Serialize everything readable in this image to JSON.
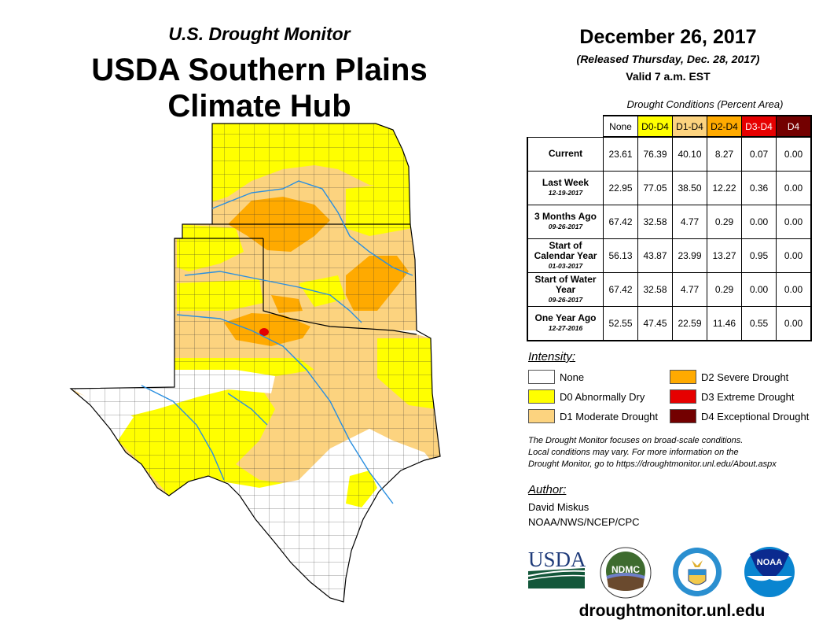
{
  "header": {
    "subtitle": "U.S. Drought Monitor",
    "title_line1": "USDA Southern Plains",
    "title_line2": "Climate Hub",
    "date": "December 26, 2017",
    "released": "(Released Thursday, Dec. 28, 2017)",
    "valid": "Valid 7 a.m. EST"
  },
  "table": {
    "caption": "Drought Conditions (Percent Area)",
    "columns": [
      {
        "label": "None",
        "color": "#ffffff",
        "text_color": "#000000"
      },
      {
        "label": "D0-D4",
        "color": "#ffff00",
        "text_color": "#000000"
      },
      {
        "label": "D1-D4",
        "color": "#fcd37f",
        "text_color": "#000000"
      },
      {
        "label": "D2-D4",
        "color": "#ffaa00",
        "text_color": "#000000"
      },
      {
        "label": "D3-D4",
        "color": "#e60000",
        "text_color": "#ffffff"
      },
      {
        "label": "D4",
        "color": "#730000",
        "text_color": "#ffffff"
      }
    ],
    "rows": [
      {
        "label": "Current",
        "date": "",
        "values": [
          "23.61",
          "76.39",
          "40.10",
          "8.27",
          "0.07",
          "0.00"
        ]
      },
      {
        "label": "Last Week",
        "date": "12-19-2017",
        "values": [
          "22.95",
          "77.05",
          "38.50",
          "12.22",
          "0.36",
          "0.00"
        ]
      },
      {
        "label": "3 Months Ago",
        "date": "09-26-2017",
        "values": [
          "67.42",
          "32.58",
          "4.77",
          "0.29",
          "0.00",
          "0.00"
        ]
      },
      {
        "label": "Start of Calendar Year",
        "date": "01-03-2017",
        "values": [
          "56.13",
          "43.87",
          "23.99",
          "13.27",
          "0.95",
          "0.00"
        ]
      },
      {
        "label": "Start of Water Year",
        "date": "09-26-2017",
        "values": [
          "67.42",
          "32.58",
          "4.77",
          "0.29",
          "0.00",
          "0.00"
        ]
      },
      {
        "label": "One Year Ago",
        "date": "12-27-2016",
        "values": [
          "52.55",
          "47.45",
          "22.59",
          "11.46",
          "0.55",
          "0.00"
        ]
      }
    ]
  },
  "legend": {
    "title": "Intensity:",
    "items": [
      {
        "label": "None",
        "color": "#ffffff"
      },
      {
        "label": "D0 Abnormally Dry",
        "color": "#ffff00"
      },
      {
        "label": "D1 Moderate Drought",
        "color": "#fcd37f"
      },
      {
        "label": "D2 Severe Drought",
        "color": "#ffaa00"
      },
      {
        "label": "D3 Extreme Drought",
        "color": "#e60000"
      },
      {
        "label": "D4 Exceptional Drought",
        "color": "#730000"
      }
    ]
  },
  "note": {
    "line1": "The Drought Monitor focuses on broad-scale conditions.",
    "line2": "Local conditions may vary. For more information on the",
    "line3": "Drought Monitor, go to https://droughtmonitor.unl.edu/About.aspx"
  },
  "author": {
    "title": "Author:",
    "name": "David Miskus",
    "org": "NOAA/NWS/NCEP/CPC"
  },
  "logos": {
    "usda": "USDA",
    "ndmc": "NDMC",
    "noaa": "NOAA"
  },
  "footer": {
    "url": "droughtmonitor.unl.edu"
  }
}
